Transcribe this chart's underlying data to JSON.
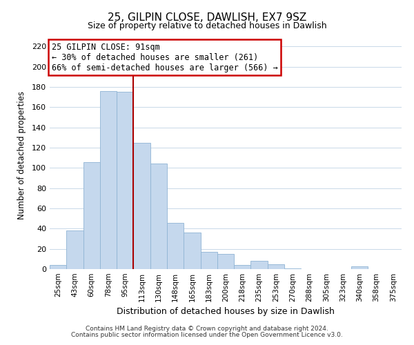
{
  "title": "25, GILPIN CLOSE, DAWLISH, EX7 9SZ",
  "subtitle": "Size of property relative to detached houses in Dawlish",
  "xlabel": "Distribution of detached houses by size in Dawlish",
  "ylabel": "Number of detached properties",
  "bar_labels": [
    "25sqm",
    "43sqm",
    "60sqm",
    "78sqm",
    "95sqm",
    "113sqm",
    "130sqm",
    "148sqm",
    "165sqm",
    "183sqm",
    "200sqm",
    "218sqm",
    "235sqm",
    "253sqm",
    "270sqm",
    "288sqm",
    "305sqm",
    "323sqm",
    "340sqm",
    "358sqm",
    "375sqm"
  ],
  "bar_values": [
    4,
    38,
    106,
    176,
    175,
    125,
    104,
    46,
    36,
    17,
    15,
    4,
    8,
    5,
    1,
    0,
    0,
    0,
    3,
    0,
    0
  ],
  "bar_color": "#c5d8ed",
  "bar_edge_color": "#8fb4d4",
  "vline_x": 4.5,
  "vline_color": "#aa0000",
  "annotation_title": "25 GILPIN CLOSE: 91sqm",
  "annotation_line1": "← 30% of detached houses are smaller (261)",
  "annotation_line2": "66% of semi-detached houses are larger (566) →",
  "annotation_box_color": "#ffffff",
  "annotation_box_edge": "#cc0000",
  "ylim": [
    0,
    225
  ],
  "yticks": [
    0,
    20,
    40,
    60,
    80,
    100,
    120,
    140,
    160,
    180,
    200,
    220
  ],
  "footer1": "Contains HM Land Registry data © Crown copyright and database right 2024.",
  "footer2": "Contains public sector information licensed under the Open Government Licence v3.0.",
  "bg_color": "#ffffff",
  "grid_color": "#c8d8e8"
}
